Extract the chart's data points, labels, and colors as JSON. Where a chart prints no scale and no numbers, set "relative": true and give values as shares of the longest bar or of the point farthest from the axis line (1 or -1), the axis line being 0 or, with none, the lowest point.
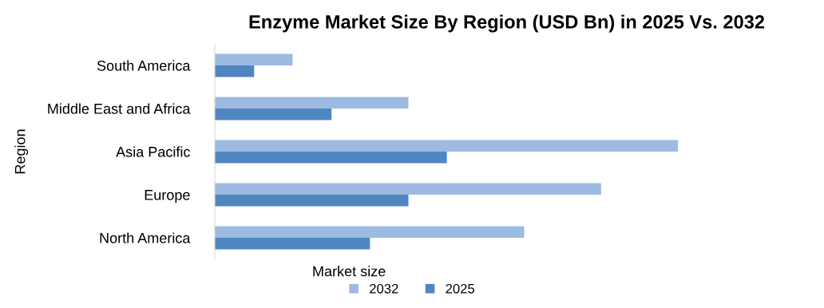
{
  "chart_data": {
    "type": "bar",
    "orientation": "horizontal",
    "relative": true,
    "title": "Enzyme Market Size By Region (USD Bn) in 2025 Vs. 2032",
    "xlabel": "Market size",
    "ylabel": "Region",
    "categories": [
      "South America",
      "Middle East and Africa",
      "Asia Pacific",
      "Europe",
      "North America"
    ],
    "series": [
      {
        "name": "2032",
        "color": "#9dbbe0",
        "values": [
          0.168,
          0.418,
          1,
          0.834,
          0.668
        ]
      },
      {
        "name": "2025",
        "color": "#4f86c0",
        "values": [
          0.085,
          0.252,
          0.501,
          0.418,
          0.335
        ]
      }
    ],
    "legend": "bottom",
    "grid": false
  }
}
